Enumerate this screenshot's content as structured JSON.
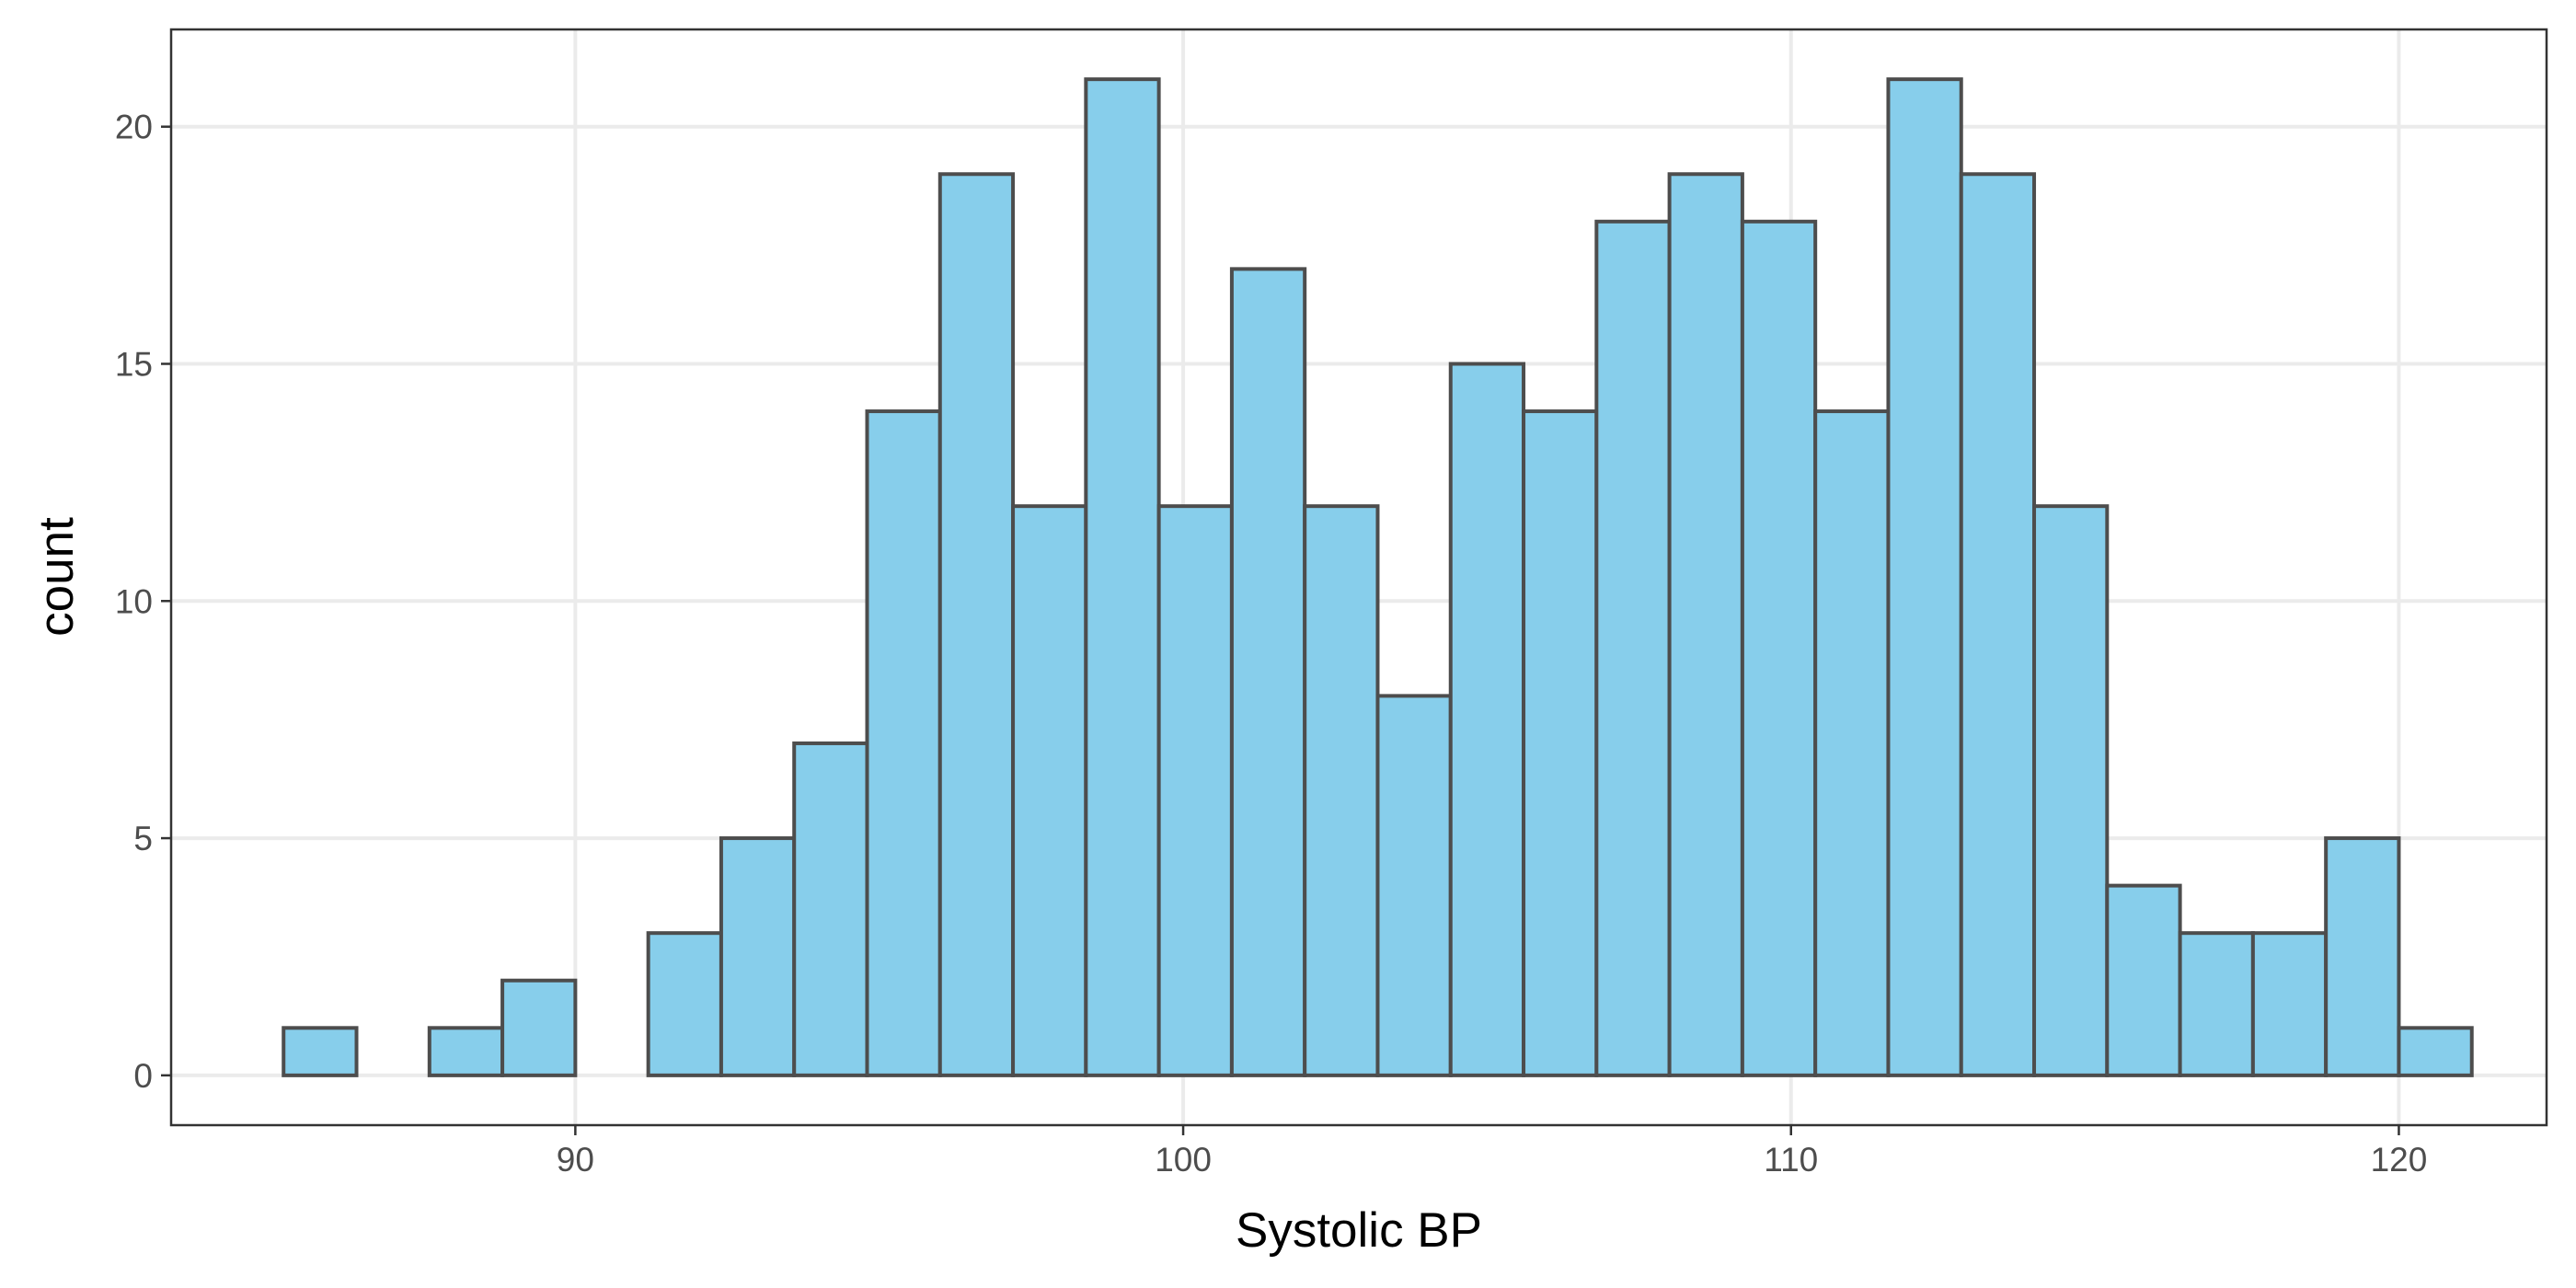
{
  "chart_data": {
    "type": "bar",
    "subtype": "histogram",
    "xlabel": "Systolic BP",
    "ylabel": "count",
    "xlim": [
      83.35,
      122.43
    ],
    "ylim": [
      -1.05,
      22.05
    ],
    "x_ticks": [
      90,
      100,
      110,
      120
    ],
    "y_ticks": [
      0,
      5,
      10,
      15,
      20
    ],
    "grid": true,
    "bin_start": 85.2,
    "bin_width": 1.2,
    "counts": [
      1,
      0,
      1,
      2,
      0,
      3,
      5,
      7,
      14,
      19,
      12,
      21,
      12,
      17,
      12,
      8,
      15,
      14,
      18,
      19,
      18,
      14,
      21,
      19,
      12,
      4,
      3,
      3,
      5,
      1
    ],
    "colors": {
      "bar_fill": "#87ceeb",
      "bar_outline": "#4d4d4d",
      "grid": "#ebebeb",
      "panel_border": "#333333",
      "tick_label": "#4d4d4d",
      "axis_title": "#000000"
    }
  }
}
